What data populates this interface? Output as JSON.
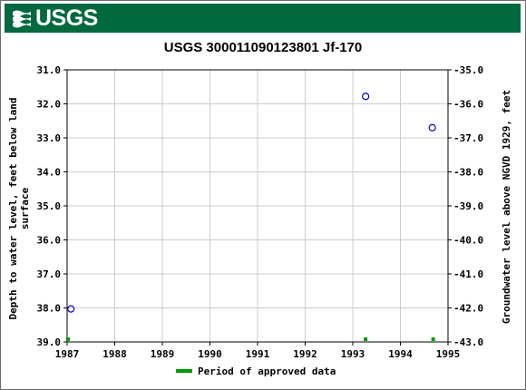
{
  "agency": "USGS",
  "colors": {
    "banner": "#00693e",
    "marker": "#0000cc",
    "approved": "#009900",
    "grid": "#cccccc"
  },
  "chart_data": {
    "type": "scatter",
    "title": "USGS 300011090123801 Jf-170",
    "xlabel": "",
    "ylabel_left": "Depth to water level, feet below land surface",
    "ylabel_left_lines": [
      "Depth to water level, feet below land",
      "surface"
    ],
    "ylabel_right": "Groundwater level above NGVD 1929, feet",
    "xlim": [
      1987,
      1995
    ],
    "ylim_left": [
      31.0,
      39.0
    ],
    "ylim_right": [
      -35.0,
      -43.0
    ],
    "y_inverted": true,
    "grid": true,
    "x_ticks": [
      "1987",
      "1988",
      "1989",
      "1990",
      "1991",
      "1992",
      "1993",
      "1994",
      "1995"
    ],
    "y_left_ticks": [
      "31.0",
      "32.0",
      "33.0",
      "34.0",
      "35.0",
      "36.0",
      "37.0",
      "38.0",
      "39.0"
    ],
    "y_right_ticks": [
      "-35.0",
      "-36.0",
      "-37.0",
      "-38.0",
      "-39.0",
      "-40.0",
      "-41.0",
      "-42.0",
      "-43.0"
    ],
    "series": [
      {
        "points": [
          {
            "x": 1987.08,
            "y": 38.03
          },
          {
            "x": 1993.27,
            "y": 31.78
          },
          {
            "x": 1994.67,
            "y": 32.7
          }
        ]
      }
    ],
    "approved_periods": [
      1987.0,
      1993.25,
      1994.67
    ],
    "legend": {
      "label": "Period of approved data",
      "position": "bottom"
    }
  }
}
